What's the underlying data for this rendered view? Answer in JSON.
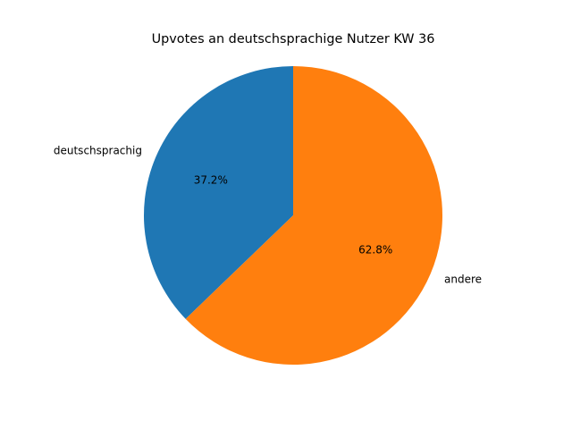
{
  "chart_data": {
    "type": "pie",
    "title": "Upvotes an deutschsprachige Nutzer KW 36",
    "categories": [
      "deutschsprachig",
      "andere"
    ],
    "values": [
      37.2,
      62.8
    ],
    "value_labels": [
      "37.2%",
      "62.8%"
    ],
    "colors": [
      "#1f77b4",
      "#ff7f0e"
    ]
  }
}
